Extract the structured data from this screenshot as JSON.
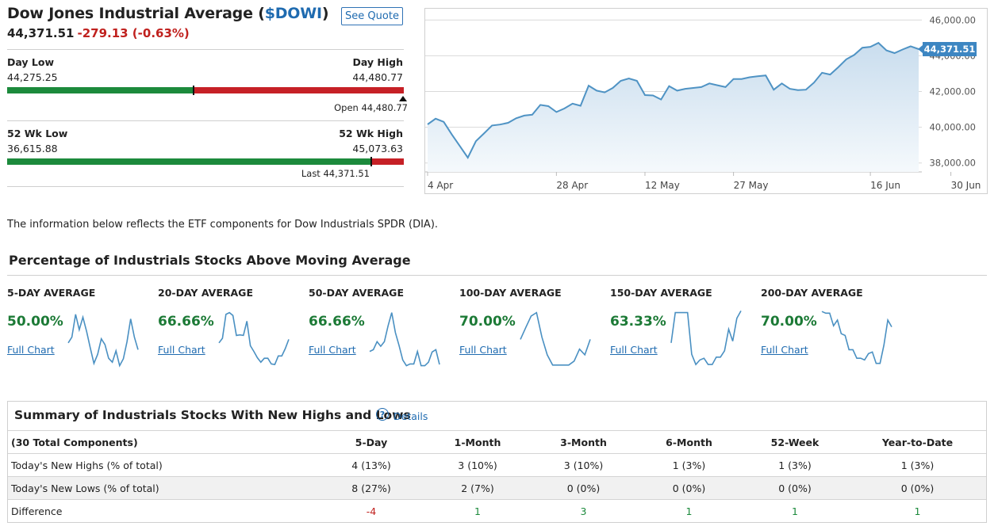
{
  "header": {
    "title_prefix": "Dow Jones Industrial Average (",
    "symbol": "$DOWI",
    "title_suffix": ")",
    "see_quote_label": "See Quote",
    "last_price": "44,371.51",
    "change": "-279.13 (-0.63%)"
  },
  "day_range": {
    "low_label": "Day Low",
    "low": "44,275.25",
    "high_label": "Day High",
    "high": "44,480.77",
    "open_text": "Open 44,480.77",
    "fraction": 0.47
  },
  "week52_range": {
    "low_label": "52 Wk Low",
    "low": "36,615.88",
    "high_label": "52 Wk High",
    "high": "45,073.63",
    "last_text": "Last 44,371.51",
    "fraction": 0.917
  },
  "price_chart": {
    "type": "area",
    "y_ticks": [
      "46,000.00",
      "44,000.00",
      "42,000.00",
      "40,000.00",
      "38,000.00"
    ],
    "y_tick_values": [
      46000,
      44000,
      42000,
      40000,
      38000
    ],
    "ylim": [
      37500,
      46500
    ],
    "x_ticks": [
      "4 Apr",
      "28 Apr",
      "12 May",
      "27 May",
      "16 Jun",
      "30 Jun"
    ],
    "x_tick_index": [
      0,
      16,
      27,
      38,
      55,
      65
    ],
    "last_label": "44,371.51",
    "last_value": 44371.51,
    "values": [
      40160,
      40480,
      40300,
      39600,
      38950,
      38300,
      39220,
      39650,
      40100,
      40150,
      40250,
      40500,
      40650,
      40700,
      41250,
      41180,
      40850,
      41050,
      41320,
      41200,
      42330,
      42050,
      41950,
      42200,
      42600,
      42730,
      42600,
      41800,
      41780,
      41550,
      42300,
      42050,
      42150,
      42200,
      42250,
      42450,
      42350,
      42250,
      42700,
      42700,
      42800,
      42850,
      42900,
      42100,
      42450,
      42150,
      42080,
      42100,
      42500,
      43050,
      42950,
      43350,
      43800,
      44050,
      44450,
      44500,
      44720,
      44300,
      44150,
      44350,
      44530,
      44371.51
    ],
    "colors": {
      "line": "#4f93c4",
      "fill_top": "#c9ddee",
      "fill_bottom": "#f5f9fc",
      "badge": "#3d86c2"
    }
  },
  "note": "The information below reflects the ETF components for Dow Industrials SPDR (DIA).",
  "section_title": "Percentage of Industrials Stocks Above Moving Average",
  "averages": [
    {
      "label": "5-DAY AVERAGE",
      "pct": "50.00%",
      "link": "Full Chart",
      "spark": [
        0.42,
        0.52,
        0.92,
        0.65,
        0.87,
        0.62,
        0.33,
        0.06,
        0.22,
        0.49,
        0.39,
        0.15,
        0.08,
        0.28,
        0.02,
        0.14,
        0.44,
        0.84,
        0.52,
        0.3
      ]
    },
    {
      "label": "20-DAY AVERAGE",
      "pct": "66.66%",
      "link": "Full Chart",
      "spark": [
        0.42,
        0.5,
        0.92,
        0.95,
        0.9,
        0.55,
        0.56,
        0.55,
        0.8,
        0.37,
        0.27,
        0.16,
        0.08,
        0.15,
        0.15,
        0.05,
        0.04,
        0.19,
        0.19,
        0.32,
        0.48
      ]
    },
    {
      "label": "50-DAY AVERAGE",
      "pct": "66.66%",
      "link": "Full Chart",
      "spark": [
        0.27,
        0.3,
        0.44,
        0.36,
        0.44,
        0.72,
        0.95,
        0.6,
        0.37,
        0.12,
        0.02,
        0.05,
        0.05,
        0.27,
        0.02,
        0.02,
        0.08,
        0.26,
        0.3,
        0.04
      ]
    },
    {
      "label": "100-DAY AVERAGE",
      "pct": "70.00%",
      "link": "Full Chart",
      "spark": [
        0.48,
        0.69,
        0.89,
        0.95,
        0.52,
        0.21,
        0.03,
        0.03,
        0.03,
        0.03,
        0.1,
        0.31,
        0.21,
        0.48
      ]
    },
    {
      "label": "150-DAY AVERAGE",
      "pct": "63.33%",
      "link": "Full Chart",
      "spark": [
        0.42,
        0.95,
        0.95,
        0.95,
        0.95,
        0.22,
        0.04,
        0.12,
        0.15,
        0.04,
        0.04,
        0.17,
        0.17,
        0.28,
        0.66,
        0.45,
        0.85,
        0.98
      ]
    },
    {
      "label": "200-DAY AVERAGE",
      "pct": "70.00%",
      "link": "Full Chart",
      "spark": [
        0.97,
        0.94,
        0.94,
        0.72,
        0.82,
        0.58,
        0.55,
        0.3,
        0.3,
        0.15,
        0.15,
        0.12,
        0.23,
        0.26,
        0.06,
        0.06,
        0.38,
        0.82,
        0.7
      ]
    }
  ],
  "summary": {
    "title": "Summary of Industrials Stocks With New Highs and Lows",
    "help_icon": "?",
    "details_link": "Details",
    "columns": [
      "(30 Total Components)",
      "5-Day",
      "1-Month",
      "3-Month",
      "6-Month",
      "52-Week",
      "Year-to-Date"
    ],
    "rows": [
      {
        "label": "Today's New Highs (% of total)",
        "cells": [
          "4 (13%)",
          "3 (10%)",
          "3 (10%)",
          "1 (3%)",
          "1 (3%)",
          "1 (3%)"
        ]
      },
      {
        "label": "Today's New Lows (% of total)",
        "cells": [
          "8 (27%)",
          "2 (7%)",
          "0 (0%)",
          "0 (0%)",
          "0 (0%)",
          "0 (0%)"
        ]
      },
      {
        "label": "Difference",
        "cells": [
          "-4",
          "1",
          "3",
          "1",
          "1",
          "1"
        ]
      }
    ]
  }
}
